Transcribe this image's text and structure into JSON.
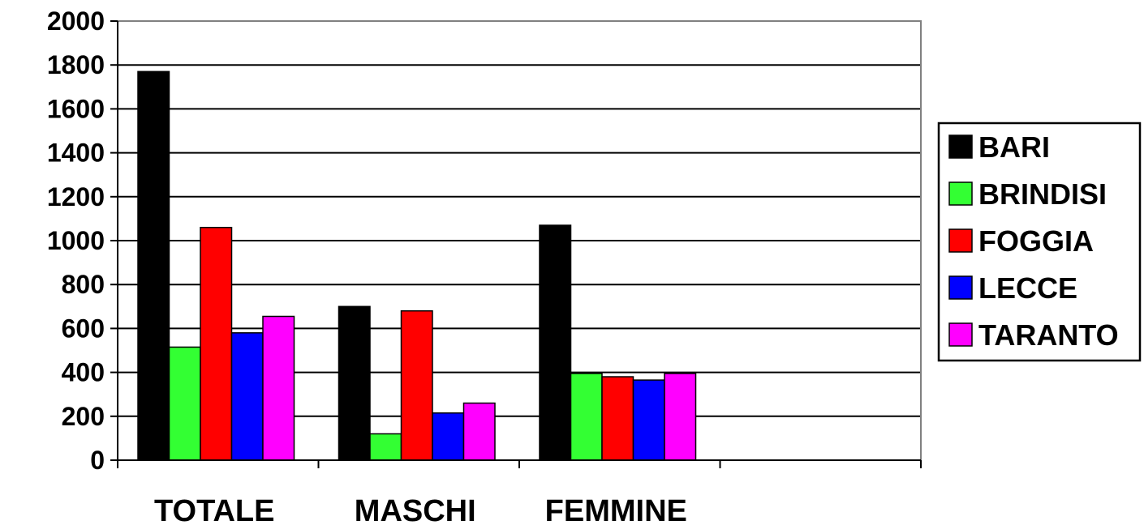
{
  "chart_data": {
    "type": "bar",
    "categories": [
      "TOTALE",
      "MASCHI",
      "FEMMINE",
      ""
    ],
    "series": [
      {
        "name": "BARI",
        "color": "#000000",
        "values": [
          1770,
          700,
          1070,
          null
        ]
      },
      {
        "name": "BRINDISI",
        "color": "#33ff33",
        "values": [
          515,
          120,
          395,
          null
        ]
      },
      {
        "name": "FOGGIA",
        "color": "#ff0000",
        "values": [
          1060,
          680,
          380,
          null
        ]
      },
      {
        "name": "LECCE",
        "color": "#0000ff",
        "values": [
          580,
          215,
          365,
          null
        ]
      },
      {
        "name": "TARANTO",
        "color": "#ff00ff",
        "values": [
          655,
          260,
          395,
          null
        ]
      }
    ],
    "yticks": [
      "0",
      "200",
      "400",
      "600",
      "800",
      "1000",
      "1200",
      "1400",
      "1600",
      "1800",
      "2000"
    ],
    "ylim": [
      0,
      2000
    ],
    "grid": true,
    "legend": "right",
    "title": "",
    "xlabel": "",
    "ylabel": ""
  }
}
